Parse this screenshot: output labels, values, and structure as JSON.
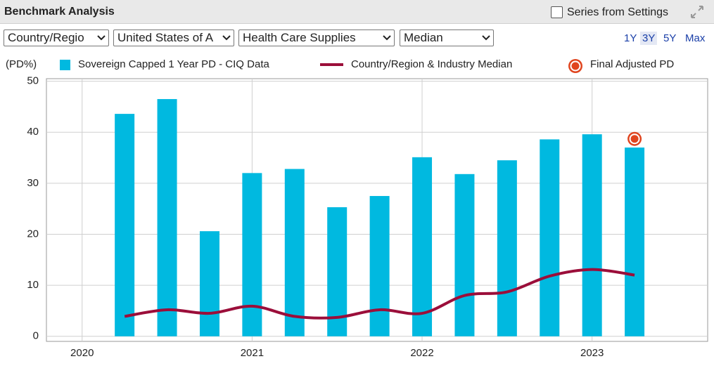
{
  "panel": {
    "title": "Benchmark Analysis",
    "checkbox_label": "Series from Settings",
    "filters": [
      "Country/Regio",
      "United States of A",
      "Health Care Supplies",
      "Median"
    ],
    "ranges": [
      "1Y",
      "3Y",
      "5Y",
      "Max"
    ],
    "selected_range": "3Y"
  },
  "chart_data": {
    "type": "combo",
    "y_label": "(PD%)",
    "x": [
      2020.25,
      2020.5,
      2020.75,
      2021.0,
      2021.25,
      2021.5,
      2021.75,
      2022.0,
      2022.25,
      2022.5,
      2022.75,
      2023.0,
      2023.25
    ],
    "xlim": [
      2019.79,
      2023.68
    ],
    "xticks": [
      2020,
      2021,
      2022,
      2023
    ],
    "ylim": [
      -1,
      50.5
    ],
    "yticks": [
      0,
      10,
      20,
      30,
      40,
      50
    ],
    "grid": true,
    "series": [
      {
        "name": "Sovereign Capped 1 Year PD - CIQ Data",
        "type": "bar",
        "color": "#00b9e0",
        "values": [
          43.6,
          46.5,
          20.6,
          32,
          32.8,
          25.3,
          27.5,
          35.1,
          31.8,
          34.5,
          38.6,
          39.6,
          37.0
        ]
      },
      {
        "name": "Country/Region & Industry Median",
        "type": "line",
        "color": "#9b0e3a",
        "values": [
          3.9,
          5.2,
          4.5,
          5.9,
          3.9,
          3.7,
          5.2,
          4.5,
          8.0,
          8.7,
          11.8,
          13.1,
          12.0
        ]
      },
      {
        "name": "Final Adjusted PD",
        "type": "scatter",
        "color": "#e0451f",
        "x": [
          2023.25
        ],
        "values": [
          38.7
        ]
      }
    ]
  }
}
